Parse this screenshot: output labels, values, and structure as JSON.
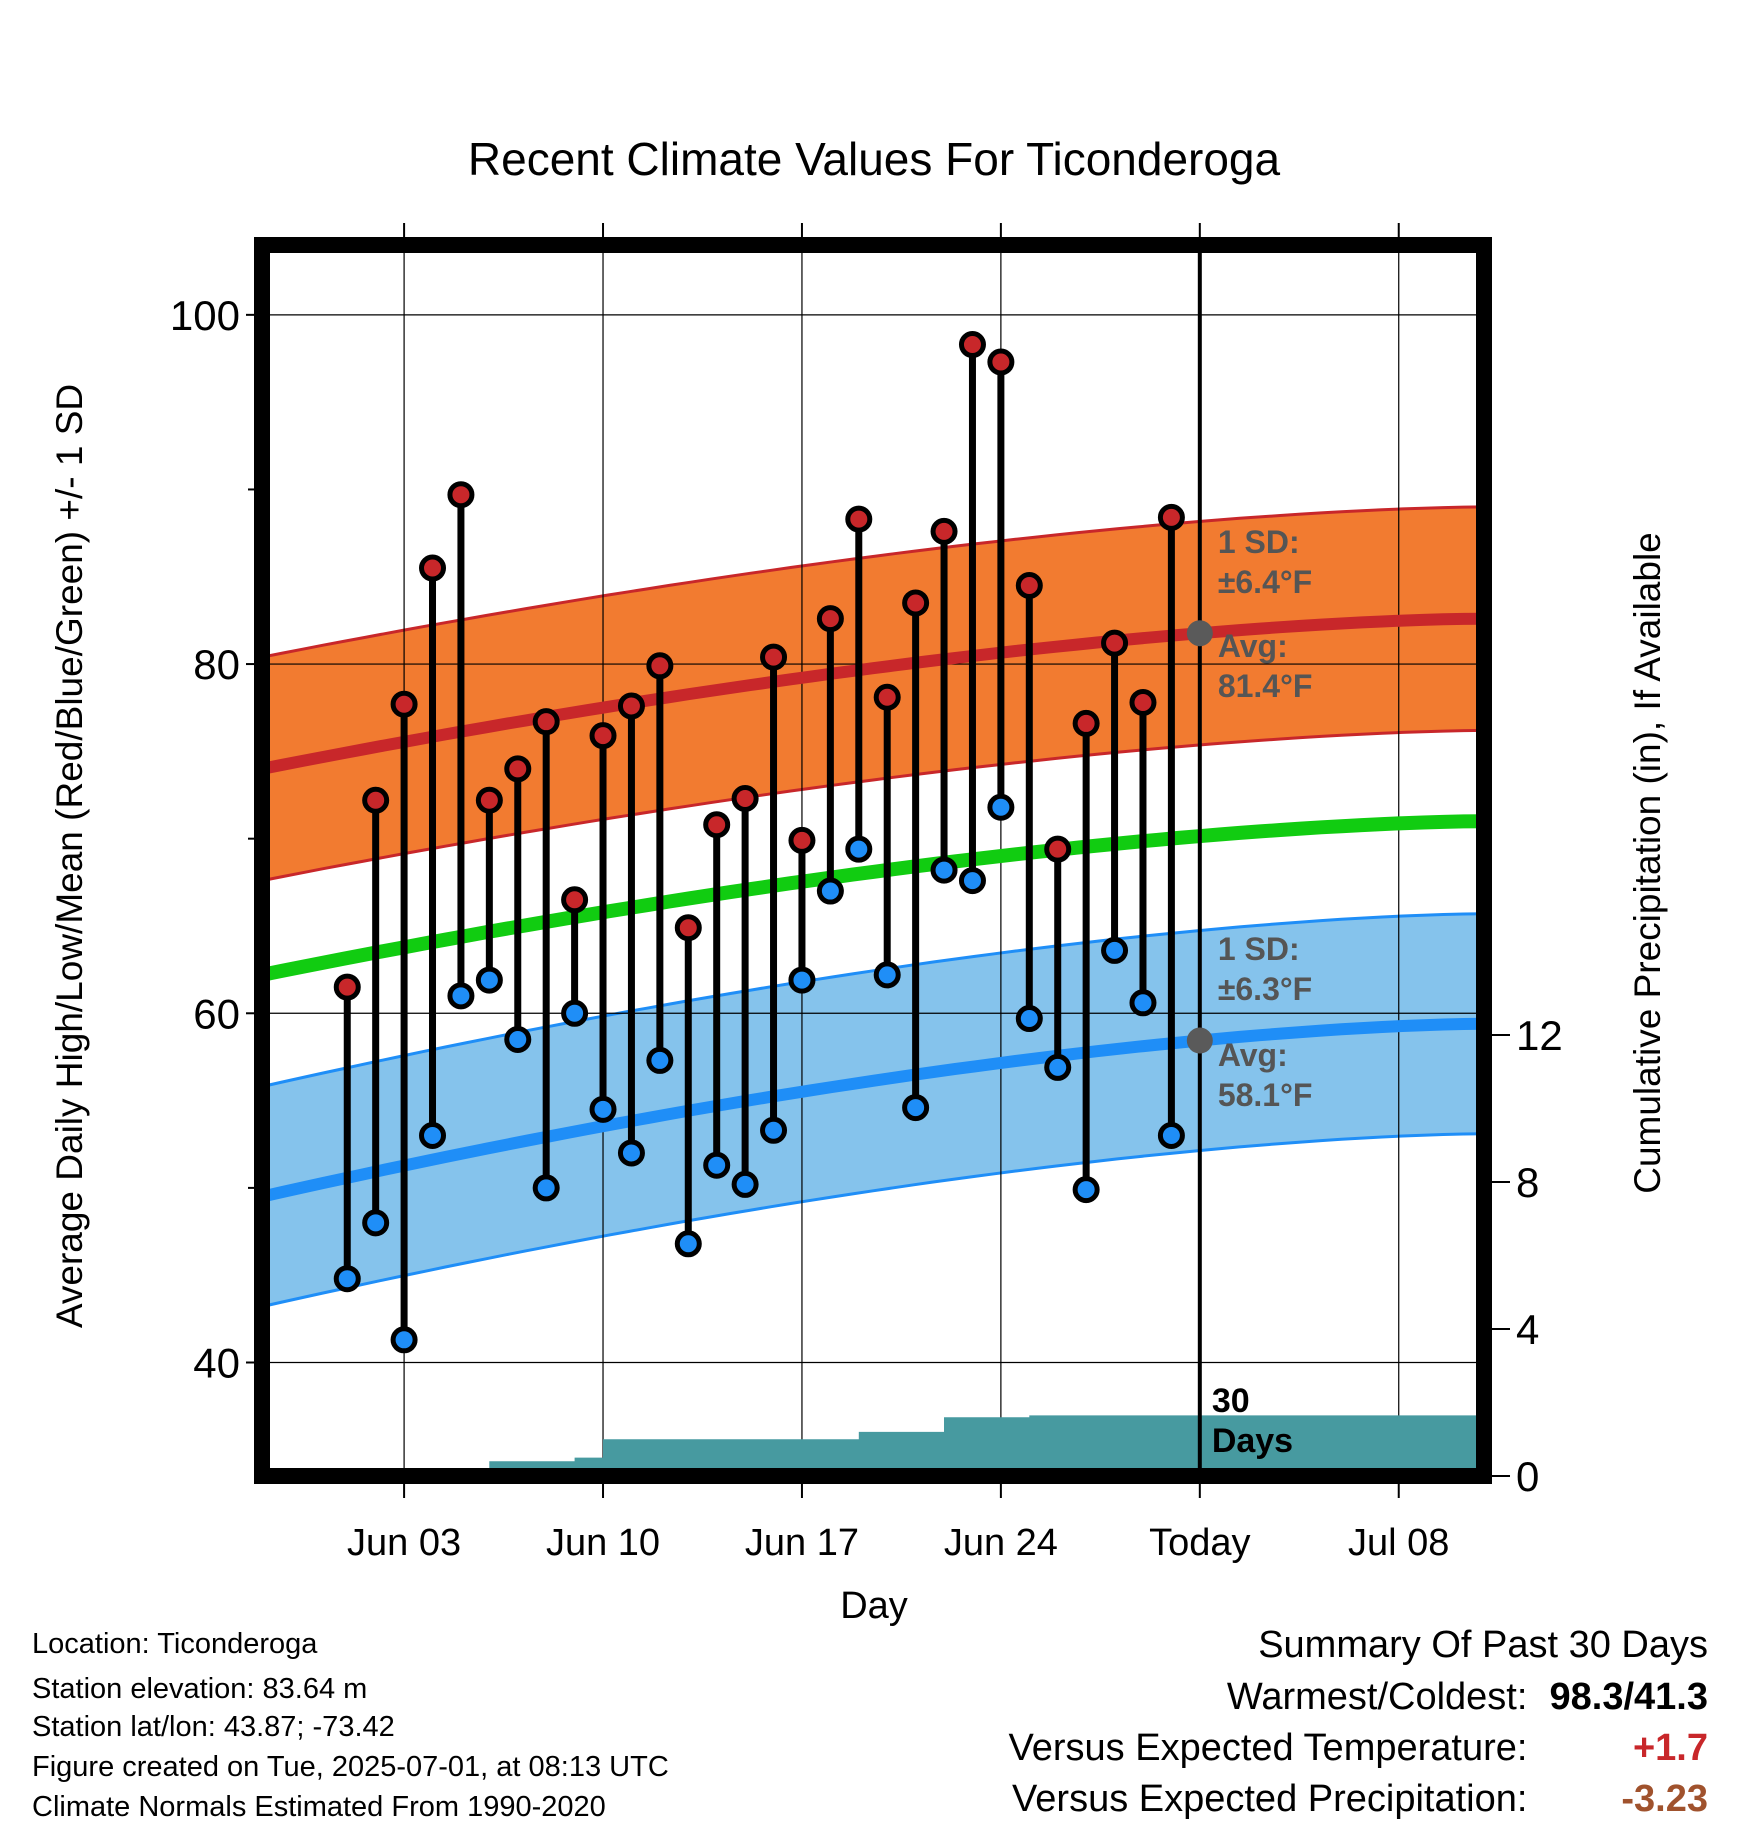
{
  "chart_data": {
    "type": "line",
    "title": "Recent Climate Values For Ticonderoga",
    "xlabel": "Day",
    "ylabel": "Average Daily High/Low/Mean (Red/Blue/Green) +/- 1 SD",
    "y2label": "Cumulative Precipitation (in), If Available",
    "ylim": [
      33.5,
      104
    ],
    "y2lim": [
      0,
      33.5
    ],
    "xlim": [
      "2025-05-29",
      "2025-07-11"
    ],
    "x_ticks": [
      {
        "date": "2025-06-03",
        "label": "Jun 03"
      },
      {
        "date": "2025-06-10",
        "label": "Jun 10"
      },
      {
        "date": "2025-06-17",
        "label": "Jun 17"
      },
      {
        "date": "2025-06-24",
        "label": "Jun 24"
      },
      {
        "date": "2025-07-01",
        "label": "Today"
      },
      {
        "date": "2025-07-08",
        "label": "Jul 08"
      }
    ],
    "y_ticks": [
      40,
      60,
      80,
      100
    ],
    "y_minor_ticks": [
      50,
      70,
      90
    ],
    "y2_ticks": [
      0,
      4,
      8,
      12
    ],
    "grid": true,
    "today": "2025-07-01",
    "today_label": "30 Days",
    "dates": [
      "2025-06-01",
      "2025-06-02",
      "2025-06-03",
      "2025-06-04",
      "2025-06-05",
      "2025-06-06",
      "2025-06-07",
      "2025-06-08",
      "2025-06-09",
      "2025-06-10",
      "2025-06-11",
      "2025-06-12",
      "2025-06-13",
      "2025-06-14",
      "2025-06-15",
      "2025-06-16",
      "2025-06-17",
      "2025-06-18",
      "2025-06-19",
      "2025-06-20",
      "2025-06-21",
      "2025-06-22",
      "2025-06-23",
      "2025-06-24",
      "2025-06-25",
      "2025-06-26",
      "2025-06-27",
      "2025-06-28",
      "2025-06-29",
      "2025-06-30"
    ],
    "highs": [
      61.5,
      72.2,
      77.7,
      85.5,
      89.7,
      72.2,
      74.0,
      76.7,
      66.5,
      75.9,
      77.6,
      79.9,
      64.9,
      70.8,
      72.3,
      80.4,
      69.9,
      82.6,
      88.3,
      78.1,
      83.5,
      87.6,
      98.3,
      97.3,
      84.5,
      69.4,
      76.6,
      81.2,
      77.8,
      88.4
    ],
    "lows": [
      44.8,
      48.0,
      41.3,
      53.0,
      61.0,
      61.9,
      58.5,
      50.0,
      60.0,
      54.5,
      52.0,
      57.3,
      46.8,
      51.3,
      50.2,
      53.3,
      61.9,
      67.0,
      69.4,
      62.2,
      54.6,
      68.2,
      67.6,
      71.8,
      59.7,
      56.9,
      49.9,
      63.6,
      60.6,
      53.0
    ],
    "normal_dates": [
      "2025-05-29",
      "2025-07-11"
    ],
    "normal_high": [
      74.0,
      82.6
    ],
    "normal_high_sd": 6.4,
    "normal_low": [
      49.5,
      59.4
    ],
    "normal_low_sd": 6.3,
    "normal_mean": [
      62.2,
      71.0
    ],
    "precip_steps": [
      {
        "date": "2025-06-06",
        "value": 0.4
      },
      {
        "date": "2025-06-09",
        "value": 0.5
      },
      {
        "date": "2025-06-10",
        "value": 1.0
      },
      {
        "date": "2025-06-19",
        "value": 1.2
      },
      {
        "date": "2025-06-22",
        "value": 1.6
      },
      {
        "date": "2025-06-25",
        "value": 1.65
      }
    ],
    "colors": {
      "high": "#c8272a",
      "high_band": "#f27b30",
      "low": "#1f8ef7",
      "low_band": "#85c3ec",
      "mean": "#11cc11",
      "precip": "#479aa0",
      "annot": "#555555",
      "today_dot": "#5a5a5a"
    },
    "annotations": {
      "high_sd_line1": "1 SD:",
      "high_sd_line2": "±6.4°F",
      "high_avg_line1": "Avg:",
      "high_avg_line2": "81.4°F",
      "low_sd_line1": "1 SD:",
      "low_sd_line2": "±6.3°F",
      "low_avg_line1": "Avg:",
      "low_avg_line2": "58.1°F",
      "days_line1": "30",
      "days_line2": "Days"
    }
  },
  "info": {
    "location": "Location: Ticonderoga",
    "elevation": "Station elevation: 83.64 m",
    "latlon": "Station lat/lon: 43.87; -73.42",
    "created": "Figure created on Tue, 2025-07-01, at 08:13 UTC",
    "normals": "Climate Normals Estimated From 1990-2020"
  },
  "summary": {
    "title": "Summary Of Past 30 Days",
    "warm_label": "Warmest/Coldest:",
    "warm_value": "98.3/41.3",
    "temp_label": "Versus Expected Temperature:",
    "temp_value": "+1.7",
    "temp_color": "#c8272a",
    "precip_label": "Versus Expected Precipitation:",
    "precip_value": "-3.23",
    "precip_color": "#a0522d"
  }
}
